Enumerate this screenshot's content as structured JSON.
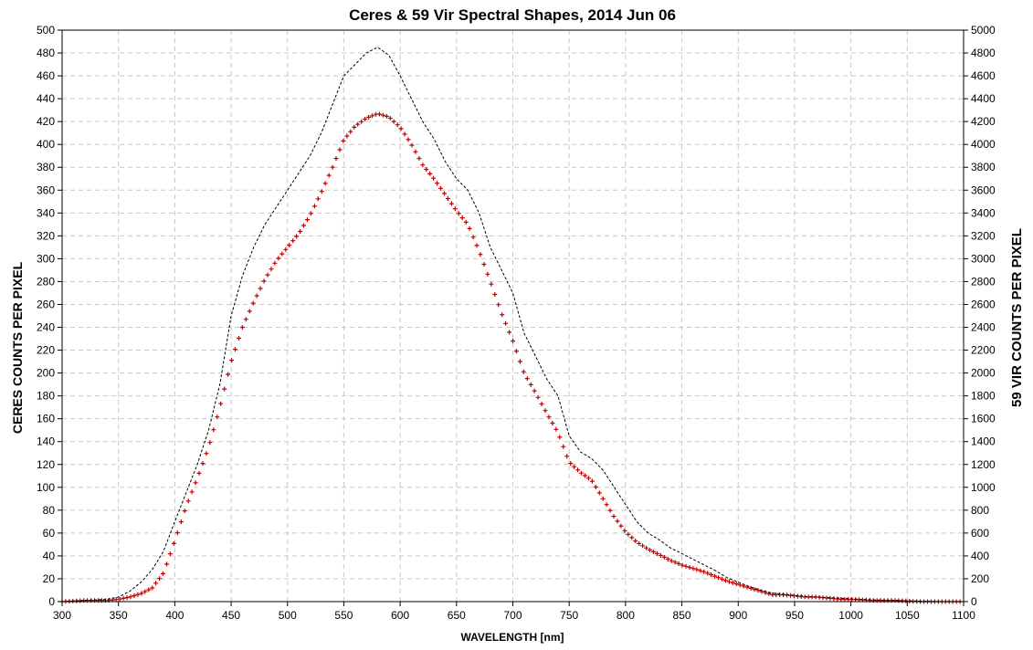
{
  "chart_data": {
    "type": "line",
    "title": "Ceres & 59 Vir Spectral Shapes, 2014 Jun 06",
    "xlabel": "WAVELENGTH  [nm]",
    "ylabel": "CERES COUNTS PER PIXEL",
    "y2label": "59 VIR COUNTS PER PIXEL",
    "xlim": [
      300,
      1100
    ],
    "ylim": [
      0,
      500
    ],
    "y2lim": [
      0,
      5000
    ],
    "xticks": [
      "300",
      "350",
      "400",
      "450",
      "500",
      "550",
      "600",
      "650",
      "700",
      "750",
      "800",
      "850",
      "900",
      "950",
      "1000",
      "1050",
      "1100"
    ],
    "yticks": [
      "0",
      "20",
      "40",
      "60",
      "80",
      "100",
      "120",
      "140",
      "160",
      "180",
      "200",
      "220",
      "240",
      "260",
      "280",
      "300",
      "320",
      "340",
      "360",
      "380",
      "400",
      "420",
      "440",
      "460",
      "480",
      "500"
    ],
    "y2ticks": [
      "0",
      "200",
      "400",
      "600",
      "800",
      "1000",
      "1200",
      "1400",
      "1600",
      "1800",
      "2000",
      "2200",
      "2400",
      "2600",
      "2800",
      "3000",
      "3200",
      "3400",
      "3600",
      "3800",
      "4000",
      "4200",
      "4400",
      "4600",
      "4800",
      "5000"
    ],
    "grid": true,
    "series": [
      {
        "axis": "left",
        "style": "red-plus-markers",
        "color": "#c00000",
        "x": [
          300,
          320,
          340,
          350,
          360,
          370,
          380,
          390,
          400,
          410,
          420,
          430,
          440,
          450,
          460,
          470,
          480,
          490,
          500,
          510,
          520,
          530,
          540,
          550,
          560,
          570,
          580,
          590,
          600,
          610,
          620,
          630,
          640,
          650,
          660,
          670,
          680,
          690,
          700,
          710,
          720,
          730,
          740,
          750,
          760,
          770,
          780,
          790,
          800,
          810,
          820,
          830,
          840,
          850,
          860,
          870,
          880,
          890,
          900,
          910,
          920,
          930,
          940,
          950,
          960,
          970,
          980,
          990,
          1000,
          1020,
          1040,
          1060,
          1080,
          1100
        ],
        "y": [
          0,
          1,
          1,
          2,
          4,
          7,
          12,
          25,
          53,
          83,
          108,
          135,
          170,
          210,
          240,
          262,
          282,
          298,
          310,
          322,
          338,
          358,
          380,
          404,
          416,
          423,
          427,
          424,
          415,
          400,
          382,
          370,
          356,
          342,
          330,
          307,
          280,
          252,
          228,
          200,
          183,
          165,
          148,
          122,
          113,
          106,
          90,
          74,
          61,
          52,
          46,
          41,
          36,
          32,
          29,
          26,
          22,
          18,
          15,
          12,
          9,
          6,
          6,
          5,
          4,
          4,
          3,
          2,
          2,
          1,
          1,
          0,
          0,
          0
        ]
      },
      {
        "axis": "right",
        "style": "black-dashed",
        "color": "#000000",
        "x": [
          300,
          320,
          340,
          350,
          360,
          370,
          380,
          390,
          400,
          410,
          420,
          430,
          440,
          450,
          460,
          470,
          480,
          490,
          500,
          510,
          520,
          530,
          540,
          550,
          560,
          570,
          580,
          590,
          600,
          610,
          620,
          630,
          640,
          650,
          660,
          670,
          680,
          690,
          700,
          710,
          720,
          730,
          740,
          750,
          760,
          770,
          780,
          790,
          800,
          810,
          820,
          830,
          840,
          850,
          860,
          870,
          880,
          890,
          900,
          910,
          920,
          930,
          940,
          950,
          960,
          970,
          980,
          990,
          1000,
          1020,
          1040,
          1060,
          1080,
          1100
        ],
        "y": [
          0,
          10,
          20,
          40,
          90,
          170,
          280,
          440,
          700,
          950,
          1200,
          1500,
          1900,
          2500,
          2850,
          3100,
          3300,
          3450,
          3600,
          3750,
          3900,
          4100,
          4350,
          4600,
          4700,
          4800,
          4850,
          4780,
          4600,
          4400,
          4200,
          4050,
          3850,
          3700,
          3600,
          3400,
          3100,
          2900,
          2700,
          2350,
          2150,
          1950,
          1800,
          1450,
          1310,
          1250,
          1150,
          1000,
          850,
          700,
          600,
          540,
          470,
          420,
          370,
          320,
          270,
          210,
          170,
          130,
          100,
          75,
          65,
          55,
          45,
          40,
          35,
          30,
          25,
          15,
          10,
          5,
          0,
          0
        ]
      }
    ]
  }
}
